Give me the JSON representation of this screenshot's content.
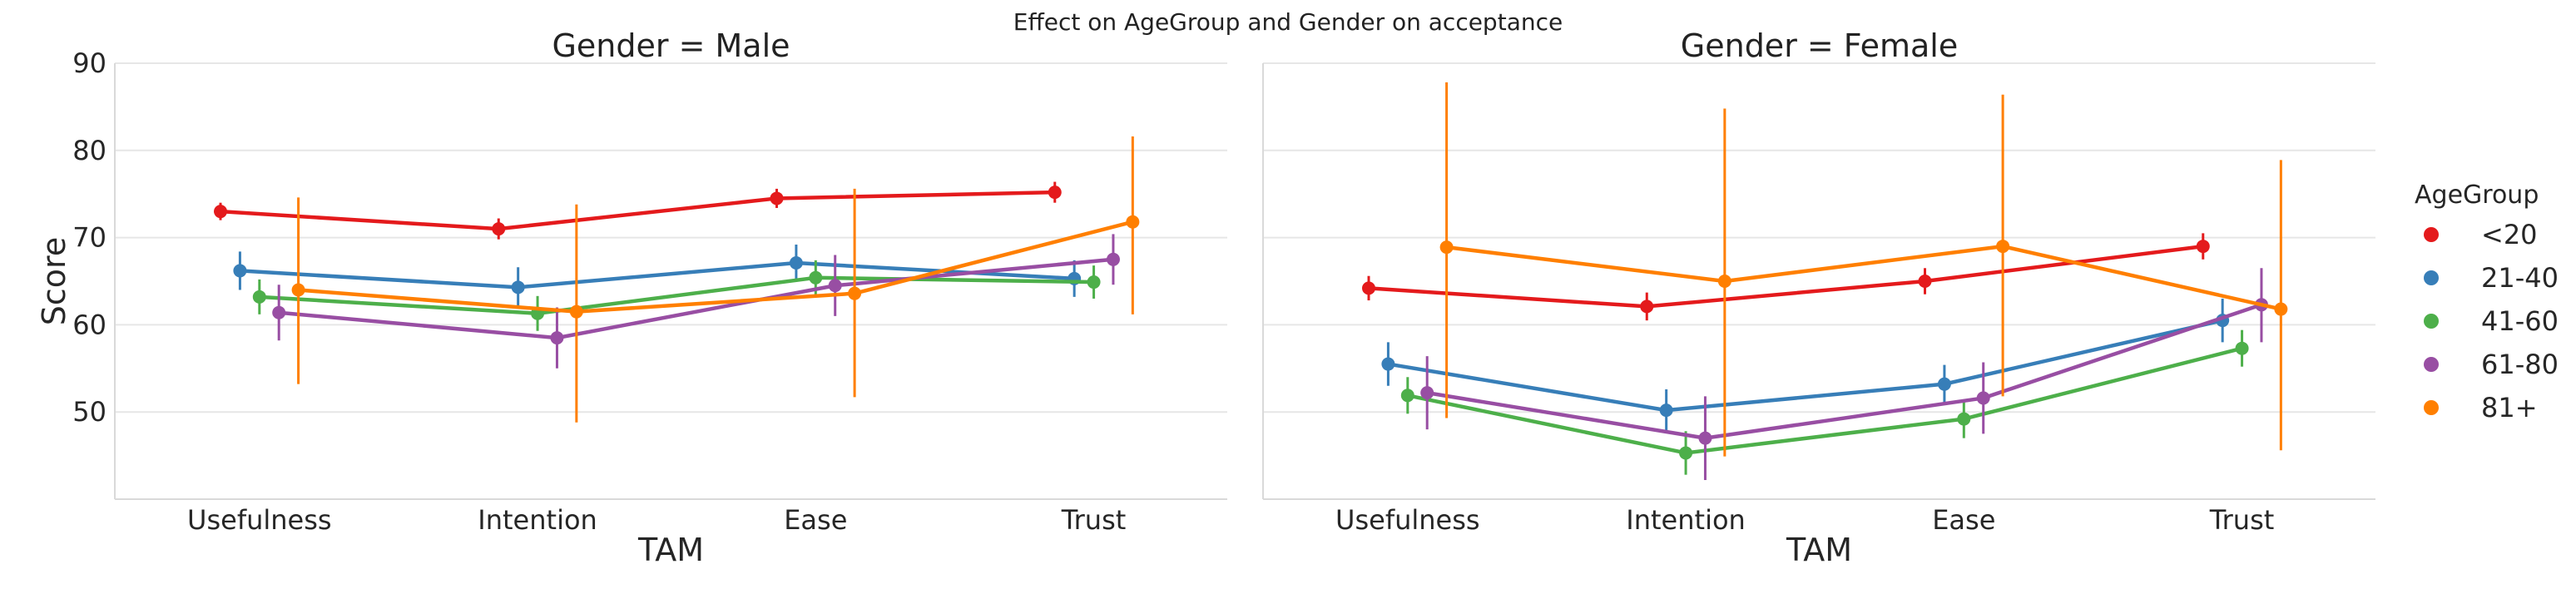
{
  "chart_data": {
    "type": "line",
    "title": "Effect on AgeGroup and Gender on acceptance",
    "xlabel": "TAM",
    "ylabel": "Score",
    "categories": [
      "Usefulness",
      "Intention",
      "Ease",
      "Trust"
    ],
    "yticks": [
      "50",
      "60",
      "70",
      "80",
      "90"
    ],
    "ylim": [
      40,
      90
    ],
    "grid": true,
    "legend": {
      "title": "AgeGroup",
      "placement": "right",
      "entries": [
        "<20",
        "21-40",
        "41-60",
        "61-80",
        "81+"
      ]
    },
    "series_colors": {
      "<20": "#e41a1c",
      "21-40": "#377eb8",
      "41-60": "#4daf4a",
      "61-80": "#984ea3",
      "81+": "#ff7f00"
    },
    "panels": [
      {
        "title": "Gender = Male",
        "series": [
          {
            "name": "<20",
            "values": [
              73.0,
              71.0,
              74.5,
              75.2
            ],
            "ci_low": [
              72.0,
              69.8,
              73.4,
              74.0
            ],
            "ci_high": [
              74.0,
              72.2,
              75.6,
              76.4
            ]
          },
          {
            "name": "21-40",
            "values": [
              66.2,
              64.3,
              67.1,
              65.3
            ],
            "ci_low": [
              64.0,
              62.0,
              65.0,
              63.2
            ],
            "ci_high": [
              68.4,
              66.6,
              69.2,
              67.4
            ]
          },
          {
            "name": "41-60",
            "values": [
              63.2,
              61.3,
              65.4,
              64.9
            ],
            "ci_low": [
              61.2,
              59.3,
              63.4,
              63.0
            ],
            "ci_high": [
              65.2,
              63.3,
              67.4,
              66.8
            ]
          },
          {
            "name": "61-80",
            "values": [
              61.4,
              58.5,
              64.5,
              67.5
            ],
            "ci_low": [
              58.2,
              55.0,
              61.0,
              64.6
            ],
            "ci_high": [
              64.6,
              62.0,
              68.0,
              70.4
            ]
          },
          {
            "name": "81+",
            "values": [
              64.0,
              61.5,
              63.6,
              71.8
            ],
            "ci_low": [
              53.2,
              48.8,
              51.7,
              61.2
            ],
            "ci_high": [
              74.6,
              73.8,
              75.6,
              81.6
            ]
          }
        ]
      },
      {
        "title": "Gender = Female",
        "series": [
          {
            "name": "<20",
            "values": [
              64.2,
              62.1,
              65.0,
              69.0
            ],
            "ci_low": [
              62.8,
              60.5,
              63.5,
              67.5
            ],
            "ci_high": [
              65.6,
              63.7,
              66.5,
              70.5
            ]
          },
          {
            "name": "21-40",
            "values": [
              55.5,
              50.2,
              53.2,
              60.5
            ],
            "ci_low": [
              53.0,
              47.8,
              51.0,
              58.0
            ],
            "ci_high": [
              58.0,
              52.6,
              55.4,
              63.0
            ]
          },
          {
            "name": "41-60",
            "values": [
              51.9,
              45.3,
              49.2,
              57.3
            ],
            "ci_low": [
              49.8,
              42.8,
              47.0,
              55.2
            ],
            "ci_high": [
              54.0,
              47.8,
              51.4,
              59.4
            ]
          },
          {
            "name": "61-80",
            "values": [
              52.2,
              47.0,
              51.6,
              62.3
            ],
            "ci_low": [
              48.0,
              42.2,
              47.5,
              58.0
            ],
            "ci_high": [
              56.4,
              51.8,
              55.7,
              66.5
            ]
          },
          {
            "name": "81+",
            "values": [
              68.9,
              65.0,
              69.0,
              61.8
            ],
            "ci_low": [
              49.3,
              44.9,
              51.8,
              45.6
            ],
            "ci_high": [
              87.8,
              84.8,
              86.4,
              78.9
            ]
          }
        ]
      }
    ]
  }
}
